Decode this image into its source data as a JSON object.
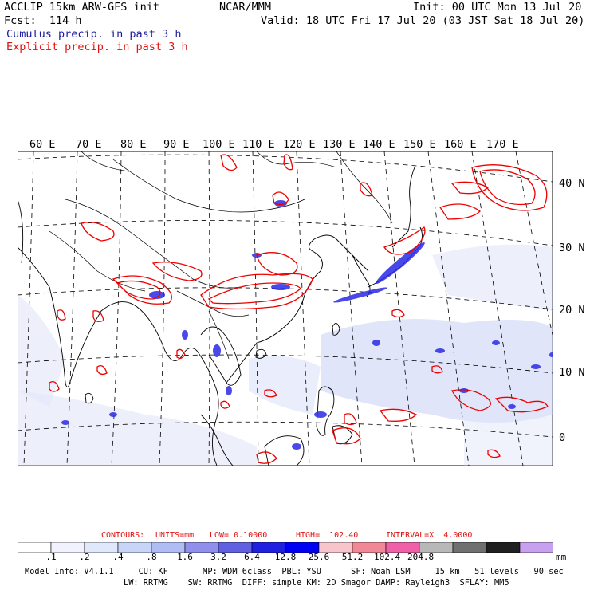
{
  "header": {
    "line1_left": "ACCLIP 15km ARW-GFS init",
    "line1_mid": "NCAR/MMM",
    "line1_right": "Init: 00 UTC Mon 13 Jul 20",
    "line2_left": "Fcst:  114 h",
    "line2_right": "Valid: 18 UTC Fri 17 Jul 20 (03 JST Sat 18 Jul 20)",
    "legend_blue": "Cumulus precip. in past 3 h",
    "legend_red": "Explicit precip. in past 3 h"
  },
  "map": {
    "lon_labels": [
      "60 E",
      "70 E",
      "80 E",
      "90 E",
      "100 E",
      "110 E",
      "120 E",
      "130 E",
      "140 E",
      "150 E",
      "160 E",
      "170 E"
    ],
    "lat_labels": [
      "40 N",
      "30 N",
      "20 N",
      "10 N",
      "0"
    ],
    "colors": {
      "explicit": "#ee0000",
      "cumulus": "#2020e0",
      "light": "#c8d0f5"
    }
  },
  "contours": {
    "label": "CONTOURS:",
    "units": "UNITS=mm",
    "low": "LOW= 0.10000",
    "high": "HIGH=  102.40",
    "interval": "INTERVAL=X  4.0000"
  },
  "colorbar": {
    "colors": [
      "#ffffff",
      "#f2f2ff",
      "#e0e8fb",
      "#c9d5f8",
      "#b0bdf5",
      "#9090ec",
      "#6060e0",
      "#2020e0",
      "#0000f5",
      "#f6c6cc",
      "#f08898",
      "#f060a8",
      "#b8b8b8",
      "#707070",
      "#202020",
      "#c8a0f0"
    ],
    "labels": [
      ".1",
      ".2",
      ".4",
      ".8",
      "1.6",
      "3.2",
      "6.4",
      "12.8",
      "25.6",
      "51.2",
      "102.4",
      "204.8"
    ],
    "unit": "mm"
  },
  "footer": {
    "line1": "Model Info: V4.1.1     CU: KF       MP: WDM 6class  PBL: YSU      SF: Noah LSM     15 km   51 levels   90 sec",
    "line2": "LW: RRTMG    SW: RRTMG  DIFF: simple KM: 2D Smagor DAMP: Rayleigh3  SFLAY: MM5"
  }
}
